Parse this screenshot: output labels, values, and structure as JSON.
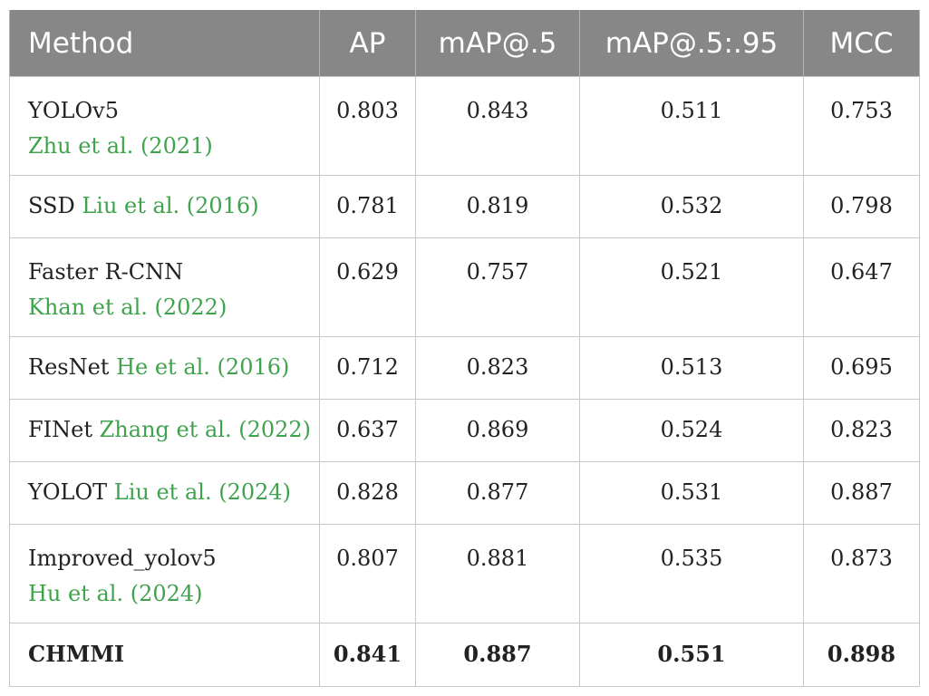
{
  "table": {
    "headers": {
      "method": "Method",
      "ap": "AP",
      "map5": "mAP@.5",
      "map595": "mAP@.5:.95",
      "mcc": "MCC"
    },
    "rows": [
      {
        "name": "YOLOv5",
        "ref": "Zhu et al. (2021)",
        "ap": "0.803",
        "map5": "0.843",
        "map595": "0.511",
        "mcc": "0.753"
      },
      {
        "name": "SSD",
        "ref": "Liu et al. (2016)",
        "ap": "0.781",
        "map5": "0.819",
        "map595": "0.532",
        "mcc": "0.798"
      },
      {
        "name": "Faster R-CNN",
        "ref": "Khan et al. (2022)",
        "ap": "0.629",
        "map5": "0.757",
        "map595": "0.521",
        "mcc": "0.647"
      },
      {
        "name": "ResNet",
        "ref": "He et al. (2016)",
        "ap": "0.712",
        "map5": "0.823",
        "map595": "0.513",
        "mcc": "0.695"
      },
      {
        "name": "FINet",
        "ref": "Zhang et al. (2022)",
        "ap": "0.637",
        "map5": "0.869",
        "map595": "0.524",
        "mcc": "0.823"
      },
      {
        "name": "YOLOT",
        "ref": "Liu et al. (2024)",
        "ap": "0.828",
        "map5": "0.877",
        "map595": "0.531",
        "mcc": "0.887"
      },
      {
        "name": "Improved_yolov5",
        "ref": "Hu et al. (2024)",
        "ap": "0.807",
        "map5": "0.881",
        "map595": "0.535",
        "mcc": "0.873"
      },
      {
        "name": "CHMMI",
        "ref": "",
        "ap": "0.841",
        "map5": "0.887",
        "map595": "0.551",
        "mcc": "0.898"
      }
    ]
  },
  "colors": {
    "header_bg": "#878787",
    "header_text": "#ffffff",
    "reference_link": "#3fa34d",
    "grid_line": "#c8c8c8"
  }
}
